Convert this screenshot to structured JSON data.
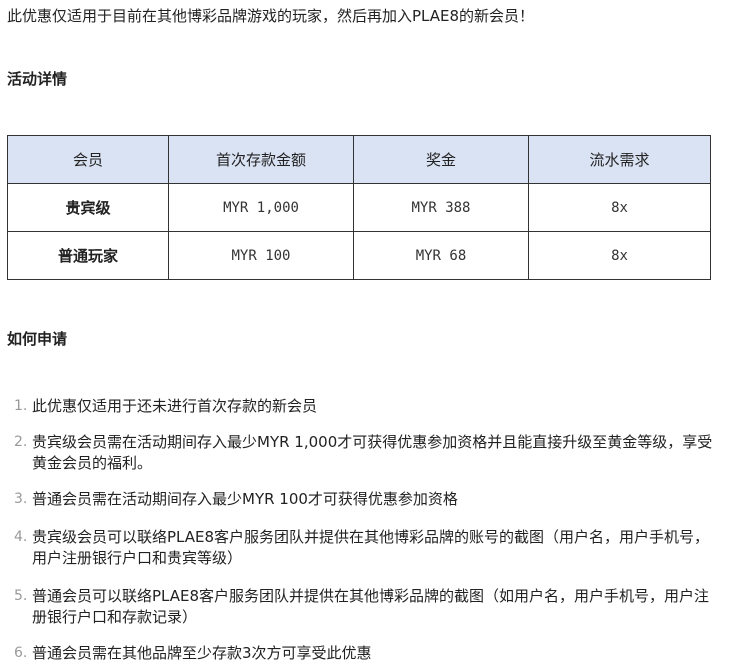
{
  "intro": "此优惠仅适用于目前在其他博彩品牌游戏的玩家，然后再加入PLAE8的新会员！",
  "details_heading": "活动详情",
  "table": {
    "headers": [
      "会员",
      "首次存款金额",
      "奖金",
      "流水需求"
    ],
    "rows": [
      [
        "贵宾级",
        "MYR 1,000",
        "MYR 388",
        "8x"
      ],
      [
        "普通玩家",
        "MYR 100",
        "MYR 68",
        "8x"
      ]
    ],
    "header_bg": "#dae3f3"
  },
  "apply_heading": "如何申请",
  "steps": [
    {
      "num": "1.",
      "text": "此优惠仅适用于还未进行首次存款的新会员"
    },
    {
      "num": "2.",
      "text": "贵宾级会员需在活动期间存入最少MYR 1,000才可获得优惠参加资格并且能直接升级至黄金等级，享受黄金会员的福利。"
    },
    {
      "num": "3.",
      "text": "普通会员需在活动期间存入最少MYR 100才可获得优惠参加资格"
    },
    {
      "num": "4.",
      "text": "贵宾级会员可以联络PLAE8客户服务团队并提供在其他博彩品牌的账号的截图（用户名，用户手机号，用户注册银行户口和贵宾等级）"
    },
    {
      "num": "5.",
      "text": "普通会员可以联络PLAE8客户服务团队并提供在其他博彩品牌的截图（如用户名，用户手机号，用户注册银行户口和存款记录）"
    },
    {
      "num": "6.",
      "text": "普通会员需在其他品牌至少存款3次方可享受此优惠"
    }
  ]
}
